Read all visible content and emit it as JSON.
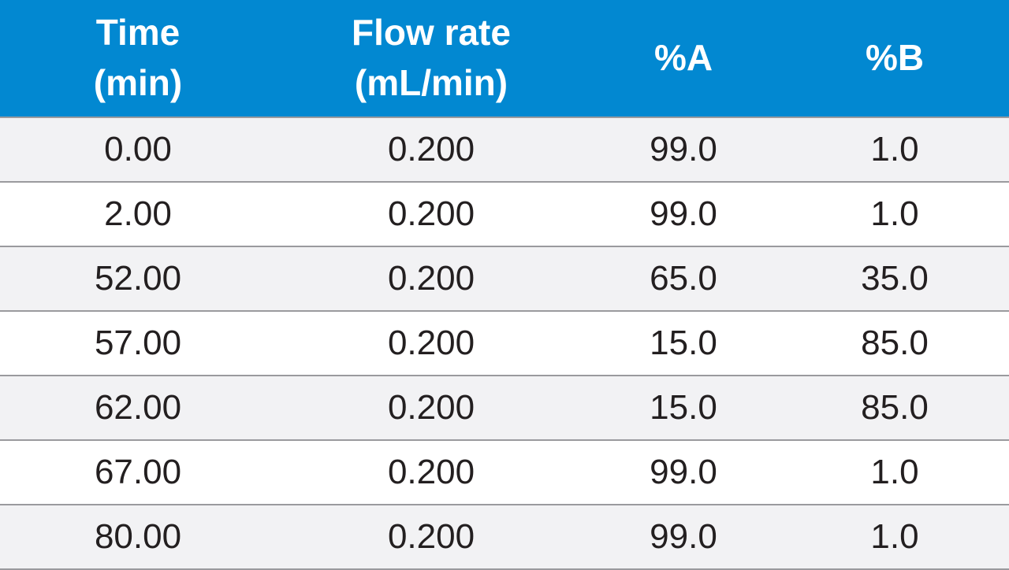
{
  "colors": {
    "header_bg": "#0288d1",
    "header_text": "#ffffff",
    "row_shade": "#f2f2f4",
    "row_plain": "#ffffff",
    "rule": "#9a9a9e",
    "body_text": "#231f20"
  },
  "table": {
    "headers": [
      "Time\n(min)",
      "Flow rate\n(mL/min)",
      "%A",
      "%B"
    ],
    "rows": [
      [
        "0.00",
        "0.200",
        "99.0",
        "1.0"
      ],
      [
        "2.00",
        "0.200",
        "99.0",
        "1.0"
      ],
      [
        "52.00",
        "0.200",
        "65.0",
        "35.0"
      ],
      [
        "57.00",
        "0.200",
        "15.0",
        "85.0"
      ],
      [
        "62.00",
        "0.200",
        "15.0",
        "85.0"
      ],
      [
        "67.00",
        "0.200",
        "99.0",
        "1.0"
      ],
      [
        "80.00",
        "0.200",
        "99.0",
        "1.0"
      ]
    ]
  }
}
